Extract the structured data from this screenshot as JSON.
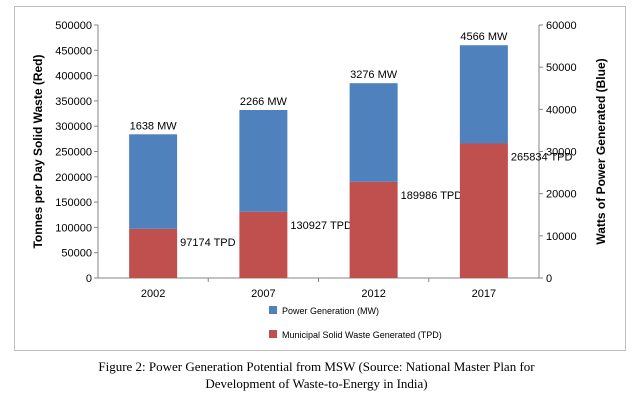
{
  "chart_data": {
    "type": "bar",
    "stacked": true,
    "categories": [
      "2002",
      "2007",
      "2012",
      "2017"
    ],
    "series": [
      {
        "name": "Municipal Solid Waste Generated (TPD)",
        "axis": "left",
        "color": "#c0504d",
        "values": [
          97174,
          130927,
          189986,
          265834
        ],
        "labels": [
          "97174 TPD",
          "130927 TPD",
          "189986 TPD",
          "265834 TPD"
        ]
      },
      {
        "name": "Power Generation (MW)",
        "axis": "right",
        "color": "#4f81bd",
        "values": [
          1638,
          2266,
          3276,
          4566
        ],
        "labels": [
          "1638 MW",
          "2266 MW",
          "3276 MW",
          "4566 MW"
        ]
      }
    ],
    "ylabel": "Tonnes per Day Solid Waste (Red)",
    "ylim": [
      0,
      500000
    ],
    "yticks": [
      "0",
      "50000",
      "100000",
      "150000",
      "200000",
      "250000",
      "300000",
      "350000",
      "400000",
      "450000",
      "500000"
    ],
    "y2label": "Watts of Power Generated (Blue)",
    "y2lim": [
      0,
      60000
    ],
    "y2ticks": [
      "0",
      "10000",
      "20000",
      "30000",
      "40000",
      "50000",
      "60000"
    ],
    "bar_top_left_axis": [
      284000,
      332000,
      385000,
      460000
    ],
    "grid": false,
    "legend_position": "bottom"
  },
  "caption": {
    "line1": "Figure 2: Power Generation Potential from MSW (Source: National Master Plan for",
    "line2": "Development of Waste-to-Energy in India)"
  }
}
